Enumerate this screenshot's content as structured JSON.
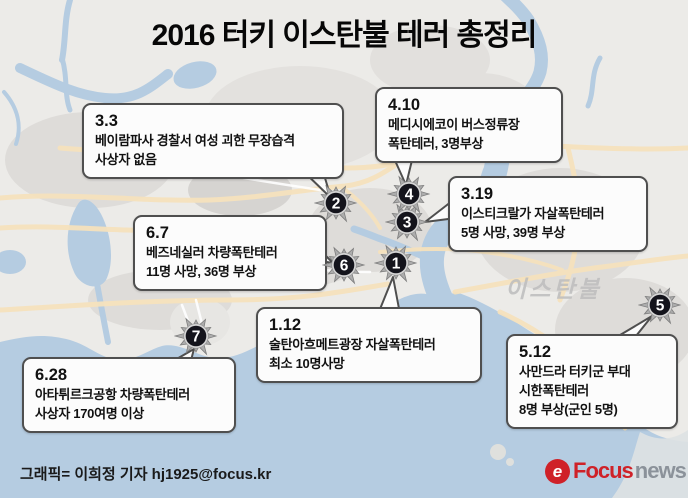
{
  "title": "2016 터키 이스탄불 테러 총정리",
  "map": {
    "region_label": "이스탄불"
  },
  "incidents": [
    {
      "marker": "1",
      "date": "1.12",
      "lines": [
        "술탄아흐메트광장 자살폭탄테러",
        "최소 10명사망"
      ]
    },
    {
      "marker": "2",
      "date": "3.3",
      "lines": [
        "베이람파사 경찰서 여성 괴한 무장습격",
        "사상자 없음"
      ]
    },
    {
      "marker": "3",
      "date": "3.19",
      "lines": [
        "이스티크랄가 자살폭탄테러",
        "5명 사망, 39명 부상"
      ]
    },
    {
      "marker": "4",
      "date": "4.10",
      "lines": [
        "메디시에코이 버스정류장",
        "폭탄테러, 3명부상"
      ]
    },
    {
      "marker": "5",
      "date": "5.12",
      "lines": [
        "사만드라 터키군 부대",
        "시한폭탄테러",
        "8명 부상(군인 5명)"
      ]
    },
    {
      "marker": "6",
      "date": "6.7",
      "lines": [
        "베즈네실러 차량폭탄테러",
        "11명 사망, 36명 부상"
      ]
    },
    {
      "marker": "7",
      "date": "6.28",
      "lines": [
        "아타튀르크공항 차량폭탄테러",
        "사상자 170여명 이상"
      ]
    }
  ],
  "footer": {
    "credit": "그래픽= 이희정 기자 hj1925@focus.kr",
    "logo": {
      "icon": "focus-swirl-icon",
      "glyph": "e",
      "brand": "Focus",
      "suffix": "news"
    }
  },
  "colors": {
    "sea": "#b5cce1",
    "land": "#ecebe8",
    "urban": "#dedcd9",
    "road": "#f6e2bd",
    "marker_core": "#14141c",
    "marker_burst": "#adadad",
    "box_border": "#4f4f4f",
    "logo_red": "#cf2128",
    "logo_gray": "#8b929a"
  }
}
